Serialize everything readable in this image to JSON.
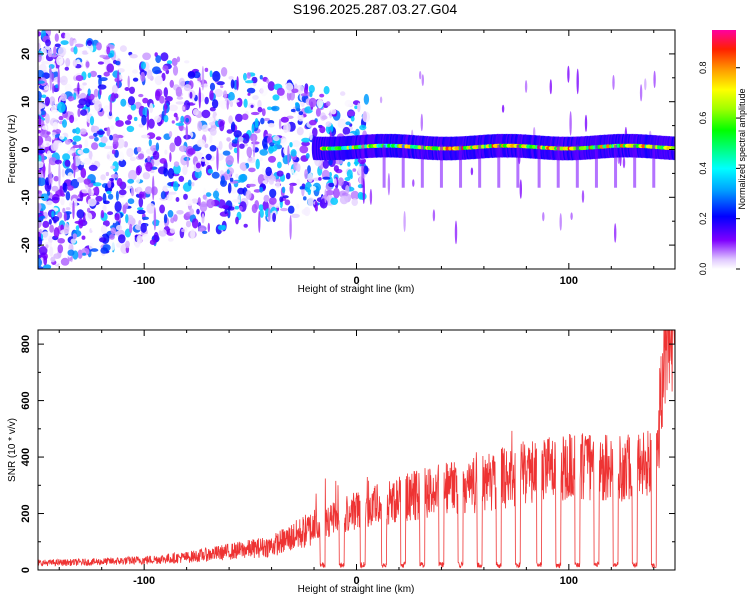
{
  "title": "S196.2025.287.03.27.G04",
  "chart_data": [
    {
      "type": "heatmap",
      "name": "spectrogram",
      "xlabel": "Height of straight line (km)",
      "ylabel": "Frequency (Hz)",
      "xlim": [
        -150,
        150
      ],
      "ylim": [
        -25,
        25
      ],
      "xticks": [
        -100,
        0,
        100
      ],
      "yticks": [
        -20,
        -10,
        0,
        10,
        20
      ],
      "colorbar": {
        "label": "Normalized spectral amplitude",
        "range": [
          0,
          0.95
        ],
        "ticks": [
          0.0,
          0.2,
          0.4,
          0.6,
          0.8
        ],
        "tick_labels": [
          "0.0",
          "0.2",
          "0.4",
          "0.6",
          "0.8"
        ],
        "colormap": "rainbow"
      },
      "description_points": {
        "line_start_km": -20,
        "line_center_hz": 0.5,
        "line_width_hz": 2.5,
        "noise_region_km": [
          -150,
          -15
        ]
      }
    },
    {
      "type": "line",
      "name": "snr",
      "xlabel": "Height of straight line (km)",
      "ylabel": "SNR (10 * v/v)",
      "xlim": [
        -150,
        150
      ],
      "ylim": [
        0,
        850
      ],
      "xticks": [
        -100,
        0,
        100
      ],
      "yticks": [
        0,
        200,
        400,
        600,
        800
      ],
      "series": [
        {
          "name": "SNR",
          "color": "#ee3333",
          "x": [
            -150,
            -125,
            -100,
            -80,
            -60,
            -40,
            -20,
            0,
            20,
            40,
            60,
            80,
            100,
            120,
            140,
            148
          ],
          "y": [
            25,
            28,
            35,
            45,
            65,
            85,
            150,
            200,
            240,
            270,
            290,
            330,
            350,
            340,
            360,
            830
          ]
        }
      ],
      "dropouts_km": [
        -16,
        -7,
        3,
        13,
        22,
        31,
        40,
        49,
        58,
        67,
        76,
        86,
        95,
        104,
        113,
        122,
        131,
        140
      ]
    }
  ]
}
